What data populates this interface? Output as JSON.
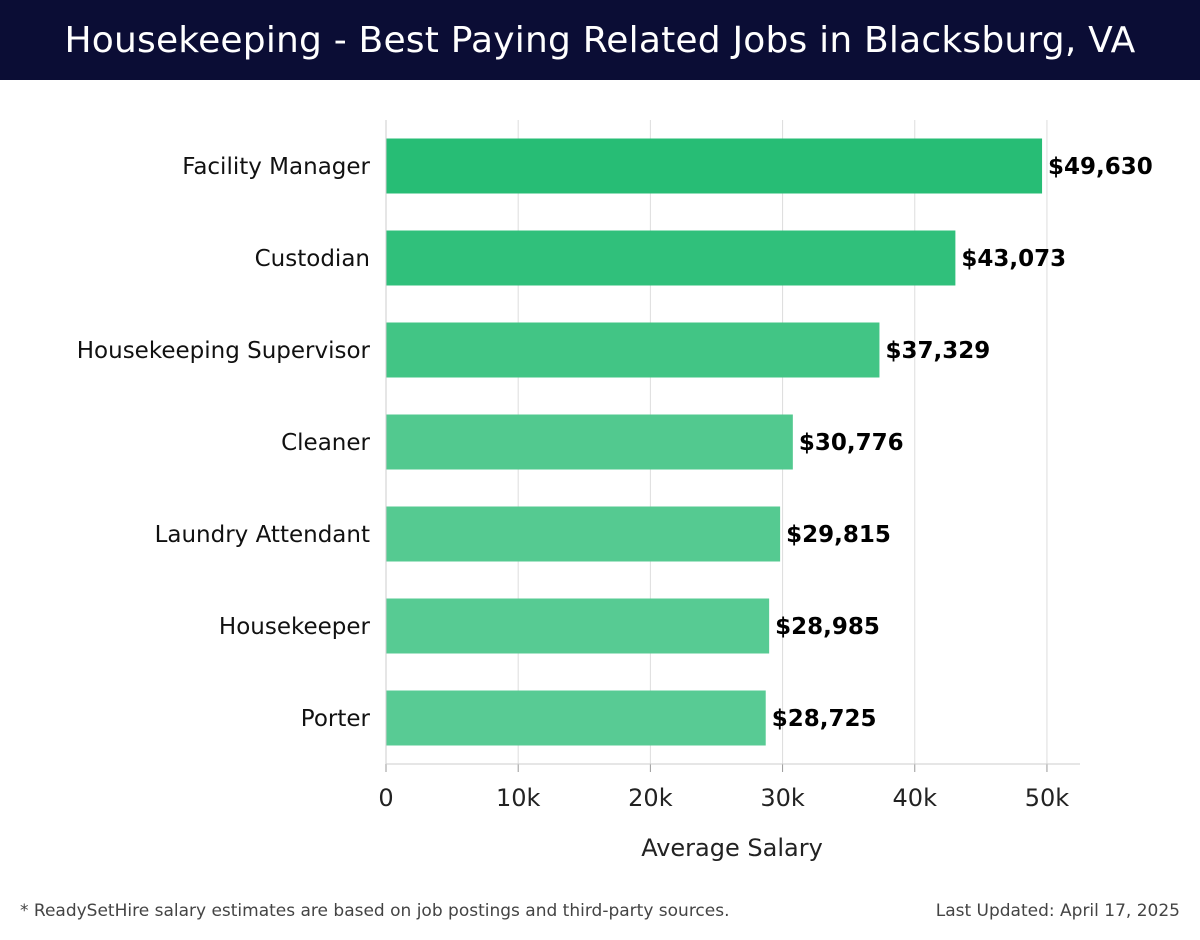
{
  "header": {
    "title": "Housekeeping - Best Paying Related Jobs in Blacksburg, VA"
  },
  "footer": {
    "note": "* ReadySetHire salary estimates are based on job postings and third-party sources.",
    "updated": "Last Updated: April 17, 2025"
  },
  "chart_data": {
    "type": "bar",
    "orientation": "horizontal",
    "title": "Housekeeping - Best Paying Related Jobs in Blacksburg, VA",
    "xlabel": "Average Salary",
    "ylabel": "",
    "categories": [
      "Facility Manager",
      "Custodian",
      "Housekeeping Supervisor",
      "Cleaner",
      "Laundry Attendant",
      "Housekeeper",
      "Porter"
    ],
    "values": [
      49630,
      43073,
      37329,
      30776,
      29815,
      28985,
      28725
    ],
    "value_labels": [
      "$49,630",
      "$43,073",
      "$37,329",
      "$30,776",
      "$29,815",
      "$28,985",
      "$28,725"
    ],
    "xlim": [
      0,
      52500
    ],
    "xticks": [
      0,
      10000,
      20000,
      30000,
      40000,
      50000
    ],
    "xtick_labels": [
      "0",
      "10k",
      "20k",
      "30k",
      "40k",
      "50k"
    ],
    "bar_colors": [
      "#27bd75",
      "#30c07b",
      "#42c585",
      "#52c98f",
      "#55ca91",
      "#57cb93",
      "#58cb94"
    ],
    "grid": true,
    "legend": "none"
  }
}
